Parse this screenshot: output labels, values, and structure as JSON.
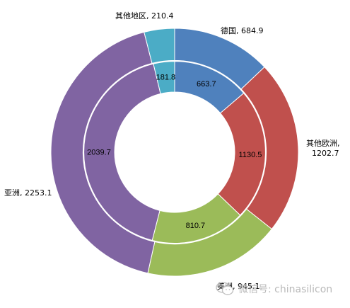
{
  "chart_data": {
    "type": "pie",
    "variant": "double-donut",
    "categories": [
      "德国",
      "其他欧洲",
      "美洲",
      "亚洲",
      "其他地区"
    ],
    "colors": [
      "#4f81bd",
      "#c0504d",
      "#9bbb59",
      "#8064a2",
      "#4bacc6"
    ],
    "series": [
      {
        "ring": "outer",
        "values": [
          684.9,
          1202.7,
          945.1,
          2253.1,
          210.4
        ]
      },
      {
        "ring": "inner",
        "values": [
          663.7,
          1130.5,
          810.7,
          2039.7,
          181.8
        ]
      }
    ],
    "outer_labels": [
      "德国, 684.9",
      "其他欧洲,\n1202.7",
      "美洲, 945.1",
      "亚洲, 2253.1",
      "其他地区, 210.4"
    ],
    "inner_labels": [
      "663.7",
      "1130.5",
      "810.7",
      "2039.7",
      "181.8"
    ],
    "start_angle_deg": 0,
    "direction": "clockwise"
  },
  "watermark": {
    "icon": "wechat-icon",
    "text": "微信号: chinasilicon"
  }
}
